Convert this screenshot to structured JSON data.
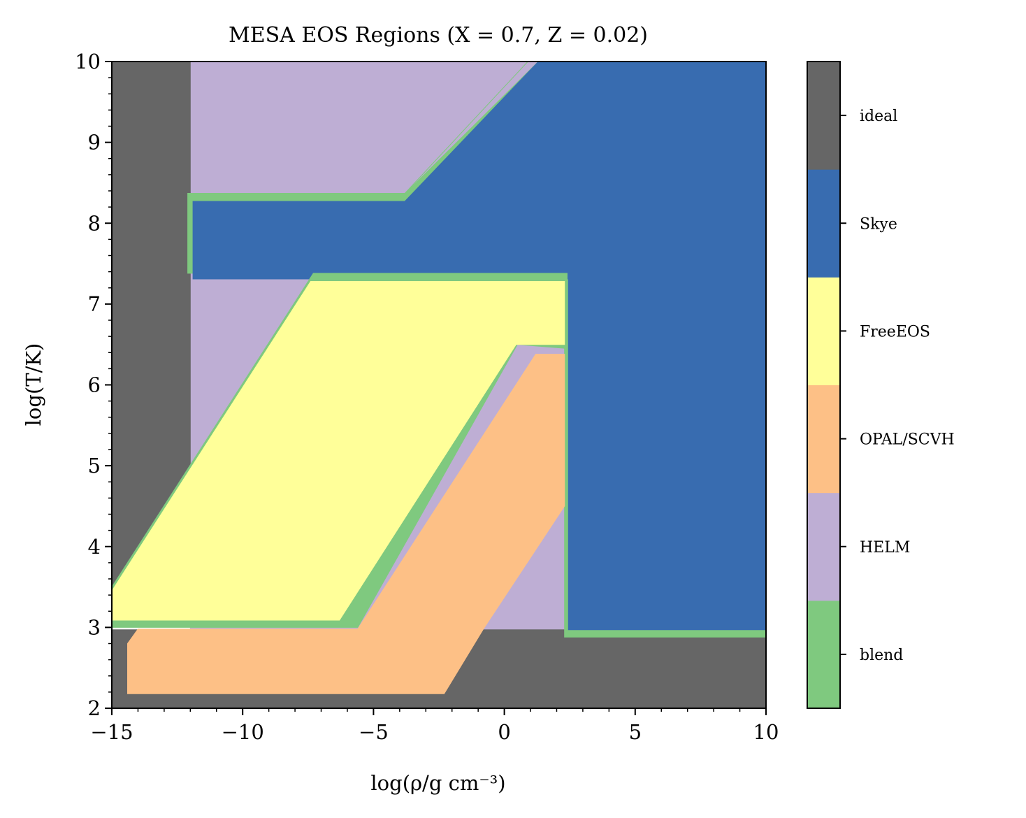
{
  "chart_data": {
    "type": "heatmap",
    "title": "MESA EOS Regions (X = 0.7, Z = 0.02)",
    "xlabel": "log(ρ/g cm⁻³)",
    "ylabel": "log(T/K)",
    "xlim": [
      -15,
      10
    ],
    "ylim": [
      2,
      10
    ],
    "xticks": [
      -15,
      -10,
      -5,
      0,
      5,
      10
    ],
    "xtick_labels": [
      "−15",
      "−10",
      "−5",
      "0",
      "5",
      "10"
    ],
    "yticks": [
      2,
      3,
      4,
      5,
      6,
      7,
      8,
      9,
      10
    ],
    "ytick_labels": [
      "2",
      "3",
      "4",
      "5",
      "6",
      "7",
      "8",
      "9",
      "10"
    ],
    "colorbar": {
      "categories": [
        "blend",
        "HELM",
        "OPAL/SCVH",
        "FreeEOS",
        "Skye",
        "ideal"
      ],
      "colors": [
        "#7fc97f",
        "#beaed4",
        "#fdc086",
        "#ffff99",
        "#386cb0",
        "#666666"
      ]
    },
    "regions": [
      {
        "name": "HELM",
        "color": "#beaed4",
        "polygon": [
          [
            -12,
            2.97
          ],
          [
            2.4,
            2.97
          ],
          [
            2.4,
            10
          ],
          [
            -12,
            10
          ]
        ]
      },
      {
        "name": "ideal",
        "color": "#666666",
        "polygon": [
          [
            -15,
            2
          ],
          [
            -15,
            10
          ],
          [
            -12,
            10
          ],
          [
            -12,
            5
          ],
          [
            -15,
            3.5
          ]
        ]
      },
      {
        "name": "ideal",
        "color": "#666666",
        "polygon": [
          [
            -15,
            2
          ],
          [
            10,
            2
          ],
          [
            10,
            2.97
          ],
          [
            -0.8,
            2.97
          ],
          [
            -2.3,
            2.18
          ],
          [
            -14.4,
            2.18
          ],
          [
            -14.4,
            2.8
          ],
          [
            -14,
            2.97
          ],
          [
            -15,
            2.97
          ]
        ]
      },
      {
        "name": "blend",
        "color": "#7fc97f",
        "polygon": [
          [
            -4,
            8.3
          ],
          [
            1.3,
            10
          ],
          [
            10,
            10
          ],
          [
            10,
            2.88
          ],
          [
            2.3,
            2.88
          ],
          [
            2.3,
            7.38
          ],
          [
            -12.1,
            7.38
          ],
          [
            -12.1,
            8.37
          ],
          [
            -3.8,
            8.37
          ],
          [
            0.9,
            10
          ]
        ]
      },
      {
        "name": "Skye",
        "color": "#386cb0",
        "polygon": [
          [
            -11.9,
            7.31
          ],
          [
            -11.9,
            8.27
          ],
          [
            -3.8,
            8.27
          ],
          [
            1.3,
            10
          ],
          [
            10,
            10
          ],
          [
            10,
            2.97
          ],
          [
            2.45,
            2.97
          ],
          [
            2.45,
            7.31
          ]
        ]
      },
      {
        "name": "blend",
        "color": "#7fc97f",
        "polygon": [
          [
            -15,
            3.5
          ],
          [
            -7.3,
            7.38
          ],
          [
            2.4,
            7.38
          ],
          [
            2.4,
            6.45
          ],
          [
            0.5,
            6.5
          ],
          [
            -5.6,
            3.0
          ],
          [
            -15,
            3.0
          ]
        ]
      },
      {
        "name": "FreeEOS",
        "color": "#ffff99",
        "polygon": [
          [
            -15,
            3.45
          ],
          [
            -7.4,
            7.28
          ],
          [
            2.3,
            7.28
          ],
          [
            2.3,
            6.5
          ],
          [
            0.45,
            6.5
          ],
          [
            -6.3,
            3.09
          ],
          [
            -15,
            3.09
          ]
        ]
      },
      {
        "name": "OPAL/SCVH",
        "color": "#fdc086",
        "polygon": [
          [
            -14.4,
            2.18
          ],
          [
            -14.4,
            2.8
          ],
          [
            -14,
            2.98
          ],
          [
            -5.6,
            2.98
          ],
          [
            1.2,
            6.38
          ],
          [
            2.3,
            6.38
          ],
          [
            2.3,
            4.5
          ],
          [
            -0.8,
            2.98
          ],
          [
            -2.3,
            2.18
          ]
        ]
      }
    ]
  }
}
